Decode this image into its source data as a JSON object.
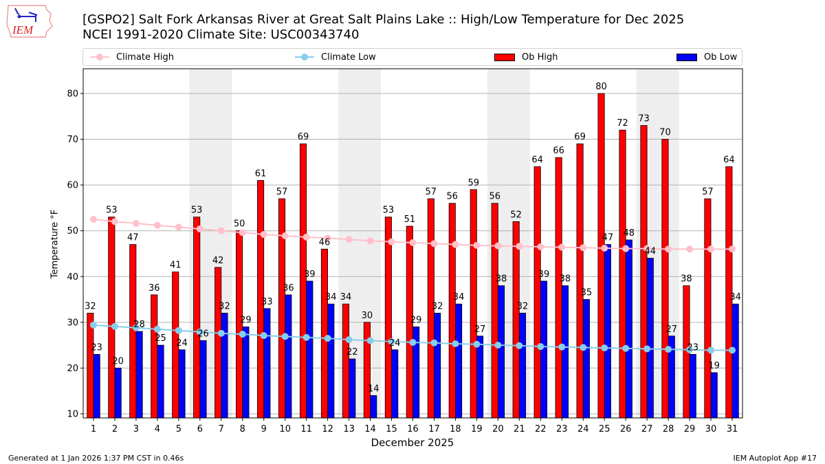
{
  "header": {
    "title_line1": "[GSPO2] Salt Fork Arkansas River at Great Salt Plains Lake :: High/Low Temperature for Dec 2025",
    "title_line2": "NCEI 1991-2020 Climate Site: USC00343740",
    "logo_text": "IEM"
  },
  "legend": {
    "items": [
      {
        "label": "Climate High",
        "kind": "line",
        "color": "#ffc0cb"
      },
      {
        "label": "Climate Low",
        "kind": "line",
        "color": "#87ceeb"
      },
      {
        "label": "Ob High",
        "kind": "bar",
        "color": "#ff0000"
      },
      {
        "label": "Ob Low",
        "kind": "bar",
        "color": "#0000ff"
      }
    ]
  },
  "footer": {
    "generated": "Generated at 1 Jan 2026 1:37 PM CST in 0.46s",
    "app": "IEM Autoplot App #17"
  },
  "chart_data": {
    "type": "bar",
    "title": "[GSPO2] Salt Fork Arkansas River at Great Salt Plains Lake :: High/Low Temperature for Dec 2025",
    "subtitle": "NCEI 1991-2020 Climate Site: USC00343740",
    "xlabel": "December 2025",
    "ylabel": "Temperature °F",
    "ylim": [
      9.1,
      85.4
    ],
    "yticks": [
      10,
      20,
      30,
      40,
      50,
      60,
      70,
      80
    ],
    "grid": true,
    "legend_position": "top",
    "categories": [
      1,
      2,
      3,
      4,
      5,
      6,
      7,
      8,
      9,
      10,
      11,
      12,
      13,
      14,
      15,
      16,
      17,
      18,
      19,
      20,
      21,
      22,
      23,
      24,
      25,
      26,
      27,
      28,
      29,
      30,
      31
    ],
    "weekend_shaded_days": [
      [
        6,
        7
      ],
      [
        13,
        14
      ],
      [
        20,
        21
      ],
      [
        27,
        28
      ]
    ],
    "series": [
      {
        "name": "Ob High",
        "type": "bar",
        "color": "#ff0000",
        "values": [
          32,
          53,
          47,
          36,
          41,
          53,
          42,
          50,
          61,
          57,
          69,
          46,
          34,
          30,
          53,
          51,
          57,
          56,
          59,
          56,
          52,
          64,
          66,
          69,
          80,
          72,
          73,
          70,
          38,
          57,
          64
        ]
      },
      {
        "name": "Ob Low",
        "type": "bar",
        "color": "#0000ff",
        "values": [
          23,
          20,
          28,
          25,
          24,
          26,
          32,
          29,
          33,
          36,
          39,
          34,
          22,
          14,
          24,
          29,
          32,
          34,
          27,
          38,
          32,
          39,
          38,
          35,
          47,
          48,
          44,
          27,
          23,
          19,
          34
        ]
      },
      {
        "name": "Climate High",
        "type": "line",
        "color": "#ffc0cb",
        "values": [
          52.5,
          52.0,
          51.6,
          51.2,
          50.8,
          50.4,
          50.0,
          49.6,
          49.2,
          48.9,
          48.6,
          48.4,
          48.1,
          47.8,
          47.6,
          47.4,
          47.2,
          47.0,
          46.8,
          46.7,
          46.6,
          46.5,
          46.4,
          46.3,
          46.2,
          46.1,
          46.1,
          46.0,
          46.0,
          46.0,
          46.0
        ]
      },
      {
        "name": "Climate Low",
        "type": "line",
        "color": "#87ceeb",
        "values": [
          29.4,
          29.1,
          28.8,
          28.5,
          28.2,
          27.9,
          27.6,
          27.4,
          27.1,
          26.9,
          26.7,
          26.5,
          26.2,
          26.0,
          25.8,
          25.6,
          25.5,
          25.3,
          25.2,
          25.0,
          24.9,
          24.7,
          24.6,
          24.5,
          24.4,
          24.3,
          24.2,
          24.1,
          24.0,
          23.9,
          23.9
        ]
      }
    ]
  }
}
